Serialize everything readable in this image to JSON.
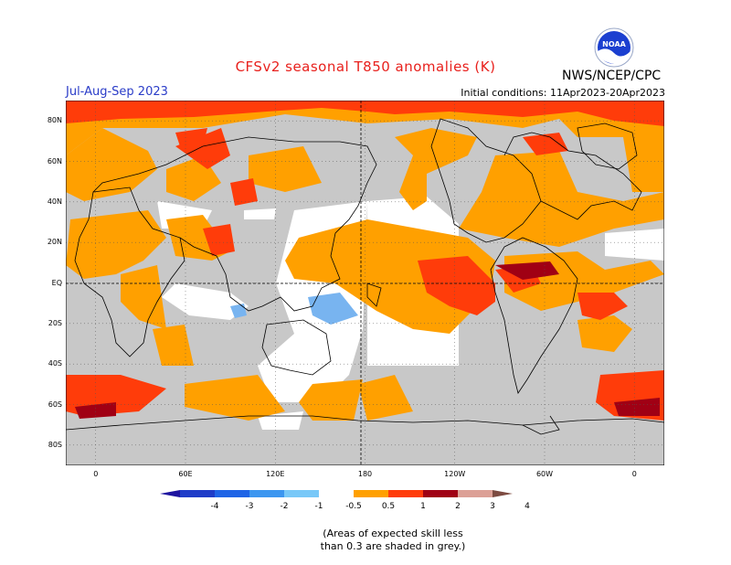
{
  "header": {
    "title": "CFSv2 seasonal T850 anomalies (K)",
    "season": "Jul-Aug-Sep 2023",
    "agency": "NWS/NCEP/CPC",
    "initial_conditions": "Initial conditions: 11Apr2023-20Apr2023",
    "logo_text": "NOAA"
  },
  "map": {
    "lat_labels": [
      "80N",
      "60N",
      "40N",
      "20N",
      "EQ",
      "20S",
      "40S",
      "60S",
      "80S"
    ],
    "lat_values": [
      80,
      60,
      40,
      20,
      0,
      -20,
      -40,
      -60,
      -80
    ],
    "lon_labels": [
      "0",
      "60E",
      "120E",
      "180",
      "120W",
      "60W",
      "0"
    ],
    "lon_values": [
      0,
      60,
      120,
      180,
      240,
      300,
      360
    ],
    "lon_range": [
      -20,
      380
    ],
    "lat_range": [
      -90,
      90
    ],
    "colors": {
      "skill_grey": "#c8c8c8",
      "neutral": "#ffffff",
      "warm_0_5_1": "#ffa000",
      "warm_1_2": "#ff3c0a",
      "warm_2_3": "#a00014",
      "cool_0_5_1": "#78b4f0",
      "grid": "#555555"
    }
  },
  "colorbar": {
    "tick_labels": [
      "-4",
      "-3",
      "-2",
      "-1",
      "-0.5",
      "0.5",
      "1",
      "2",
      "3",
      "4"
    ],
    "colors": [
      "#1e14a0",
      "#1e3cc8",
      "#1e64e6",
      "#3c96f0",
      "#78c8f8",
      "#ffffff",
      "#ffa000",
      "#ff3c0a",
      "#a00014",
      "#dca096",
      "#7d4b41"
    ]
  },
  "note": {
    "line1": "(Areas of expected skill less",
    "line2": "than 0.3 are shaded in grey.)"
  }
}
